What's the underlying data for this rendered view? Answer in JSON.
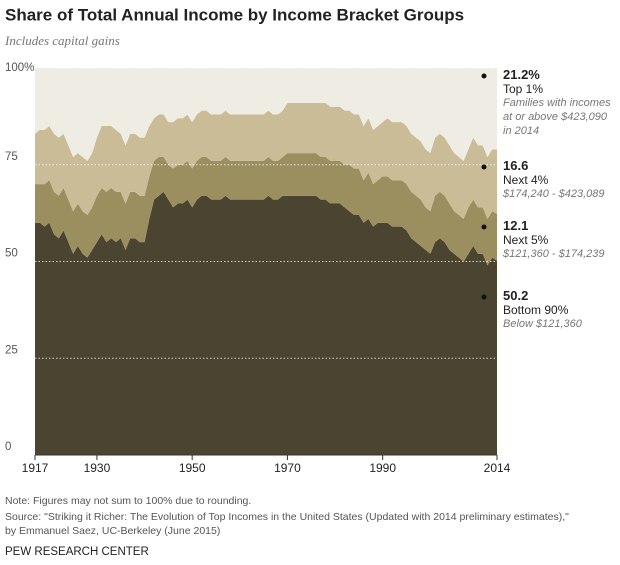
{
  "chart_data": {
    "type": "stacked_area",
    "title": "Share of Total Annual Income by Income Bracket Groups",
    "subtitle": "Includes capital gains",
    "x": [
      1917,
      1918,
      1919,
      1920,
      1921,
      1922,
      1923,
      1924,
      1925,
      1926,
      1927,
      1928,
      1929,
      1930,
      1931,
      1932,
      1933,
      1934,
      1935,
      1936,
      1937,
      1938,
      1939,
      1940,
      1941,
      1942,
      1943,
      1944,
      1945,
      1946,
      1947,
      1948,
      1949,
      1950,
      1951,
      1952,
      1953,
      1954,
      1955,
      1956,
      1957,
      1958,
      1959,
      1960,
      1961,
      1962,
      1963,
      1964,
      1965,
      1966,
      1967,
      1968,
      1969,
      1970,
      1971,
      1972,
      1973,
      1974,
      1975,
      1976,
      1977,
      1978,
      1979,
      1980,
      1981,
      1982,
      1983,
      1984,
      1985,
      1986,
      1987,
      1988,
      1989,
      1990,
      1991,
      1992,
      1993,
      1994,
      1995,
      1996,
      1997,
      1998,
      1999,
      2000,
      2001,
      2002,
      2003,
      2004,
      2005,
      2006,
      2007,
      2008,
      2009,
      2010,
      2011,
      2012,
      2013,
      2014
    ],
    "series": [
      {
        "name": "Bottom 90%",
        "color": "#4b4431",
        "description": "Below $121,360",
        "values": [
          60,
          60,
          59,
          60,
          57,
          56,
          58,
          55,
          52,
          54,
          52,
          51,
          53,
          55,
          57,
          55,
          56,
          55,
          56,
          53,
          56,
          56,
          55,
          55,
          61,
          66,
          67,
          68,
          66,
          64,
          65,
          65,
          66,
          64,
          66,
          67,
          67,
          66,
          66,
          66,
          67,
          66,
          66,
          66,
          66,
          66,
          66,
          66,
          66,
          67,
          66,
          66,
          67,
          67,
          67,
          67,
          67,
          67,
          67,
          67,
          66,
          66,
          65,
          65,
          65,
          64,
          63,
          62,
          62,
          60,
          61,
          59,
          60,
          60,
          60,
          59,
          59,
          59,
          58,
          56,
          55,
          54,
          53,
          52,
          55,
          56,
          55,
          53,
          52,
          51,
          50,
          52,
          54,
          52,
          52,
          49,
          51,
          50.2
        ]
      },
      {
        "name": "Next 5%",
        "color": "#9c8f5f",
        "description": "$121,360 - $174,239",
        "values": [
          10,
          10,
          11,
          11,
          11,
          11,
          11,
          11,
          11,
          11,
          11,
          11,
          11,
          12,
          12,
          13,
          13,
          13,
          12,
          12,
          12,
          12,
          12,
          12,
          11,
          10,
          10,
          9,
          9,
          10,
          10,
          10,
          10,
          10,
          10,
          10,
          10,
          10,
          10,
          10,
          10,
          10,
          10,
          10,
          10,
          10,
          10,
          10,
          10,
          10,
          10,
          10,
          10,
          11,
          11,
          11,
          11,
          11,
          11,
          11,
          11,
          11,
          11,
          11,
          11,
          11,
          12,
          12,
          12,
          11,
          12,
          11,
          11,
          12,
          12,
          12,
          12,
          12,
          12,
          12,
          12,
          12,
          11,
          11,
          12,
          12,
          12,
          12,
          11,
          11,
          11,
          12,
          12,
          12,
          12,
          12,
          12,
          12.1
        ]
      },
      {
        "name": "Next 4%",
        "color": "#c9bc97",
        "description": "$174,240 - $423,089",
        "values": [
          13,
          14,
          14,
          14,
          15,
          15,
          14,
          14,
          14,
          13,
          14,
          14,
          14,
          15,
          16,
          17,
          16,
          16,
          15,
          15,
          15,
          15,
          15,
          15,
          13,
          11,
          11,
          11,
          11,
          12,
          12,
          12,
          12,
          12,
          12,
          12,
          12,
          12,
          12,
          12,
          12,
          12,
          12,
          12,
          12,
          12,
          12,
          12,
          12,
          12,
          12,
          12,
          12,
          13,
          13,
          13,
          13,
          13,
          13,
          13,
          14,
          14,
          14,
          14,
          14,
          14,
          14,
          14,
          14,
          14,
          14,
          14,
          14,
          14,
          15,
          15,
          15,
          15,
          15,
          15,
          15,
          15,
          15,
          15,
          15,
          15,
          15,
          15,
          15,
          15,
          15,
          15,
          16,
          16,
          16,
          16,
          16,
          16.6
        ]
      },
      {
        "name": "Top 1%",
        "color": "#efece4",
        "description": "Families with incomes at or above $423,090 in 2014",
        "last_value_label": "21.2%",
        "values": [
          17,
          16,
          16,
          15,
          17,
          18,
          17,
          20,
          23,
          22,
          23,
          24,
          22,
          18,
          15,
          15,
          15,
          16,
          17,
          20,
          17,
          17,
          18,
          18,
          15,
          13,
          12,
          12,
          14,
          14,
          13,
          13,
          12,
          14,
          12,
          11,
          11,
          12,
          12,
          12,
          11,
          12,
          12,
          12,
          12,
          12,
          12,
          12,
          12,
          11,
          12,
          12,
          11,
          9,
          9,
          9,
          9,
          9,
          9,
          9,
          9,
          9,
          10,
          10,
          10,
          11,
          11,
          12,
          12,
          15,
          13,
          16,
          15,
          14,
          13,
          14,
          14,
          14,
          15,
          17,
          18,
          19,
          21,
          22,
          18,
          17,
          18,
          20,
          22,
          23,
          24,
          21,
          18,
          20,
          20,
          23,
          21,
          21.2
        ]
      }
    ],
    "xlim": [
      1917,
      2014
    ],
    "xticks": [
      1917,
      1930,
      1950,
      1970,
      1990,
      2014
    ],
    "ylim": [
      0,
      100
    ],
    "yticks": [
      0,
      25,
      50,
      75,
      {
        "value": 100,
        "label": "100%"
      }
    ],
    "grid": true,
    "note": "Note: Figures may not sum to 100% due to rounding.",
    "source_lines": [
      "Source: \"Striking it Richer: The Evolution of Top Incomes in the United States (Updated with 2014 preliminary estimates),\"",
      "by Emmanuel Saez, UC-Berkeley (June 2015)"
    ],
    "credit": "PEW RESEARCH CENTER"
  }
}
